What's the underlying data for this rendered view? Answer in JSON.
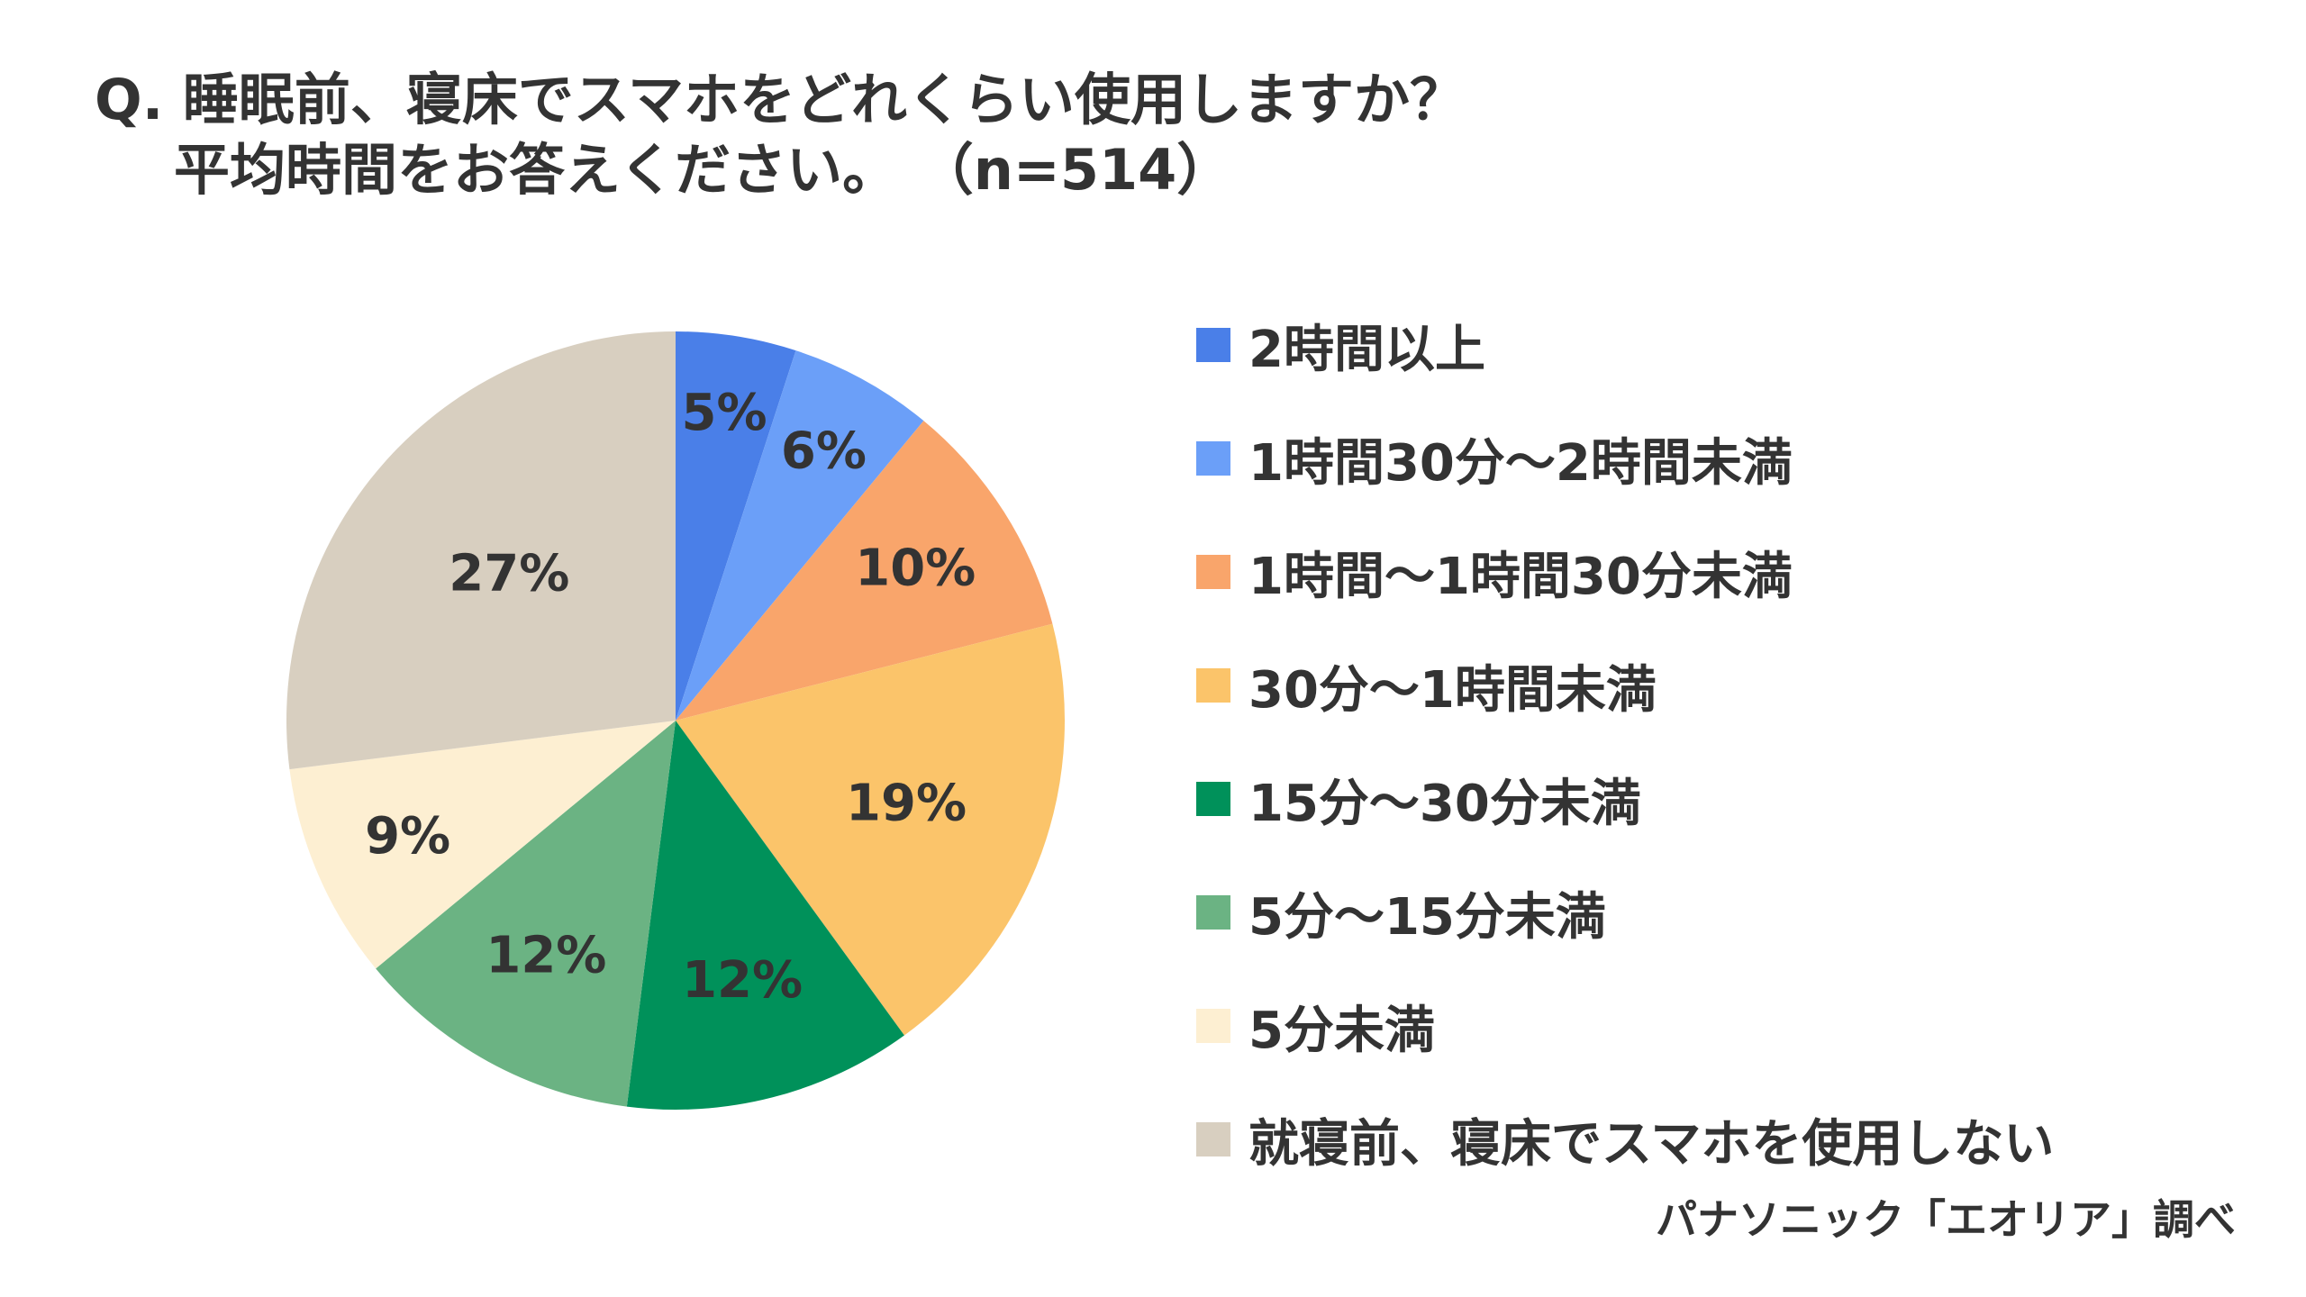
{
  "title_line1": "Q. 睡眠前、寝床でスマホをどれくらい使用しますか？",
  "title_line2": "平均時間をお答えください。 （n=514）",
  "source": "パナソニック「エオリア」調べ",
  "chart_data": {
    "type": "pie",
    "categories": [
      "2時間以上",
      "1時間30分～2時間未満",
      "1時間～1時間30分未満",
      "30分～1時間未満",
      "15分～30分未満",
      "5分～15分未満",
      "5分未満",
      "就寝前、寝床でスマホを使用しない"
    ],
    "values": [
      5,
      6,
      10,
      19,
      12,
      12,
      9,
      27
    ],
    "value_labels": [
      "5%",
      "6%",
      "10%",
      "19%",
      "12%",
      "12%",
      "9%",
      "27%"
    ],
    "colors": [
      "#4A7FE8",
      "#6B9FF8",
      "#F9A56B",
      "#FBC46A",
      "#00915A",
      "#6BB383",
      "#FDEFD2",
      "#D8CFC0"
    ],
    "start": "12 o'clock",
    "direction": "clockwise",
    "legend_position": "right"
  }
}
